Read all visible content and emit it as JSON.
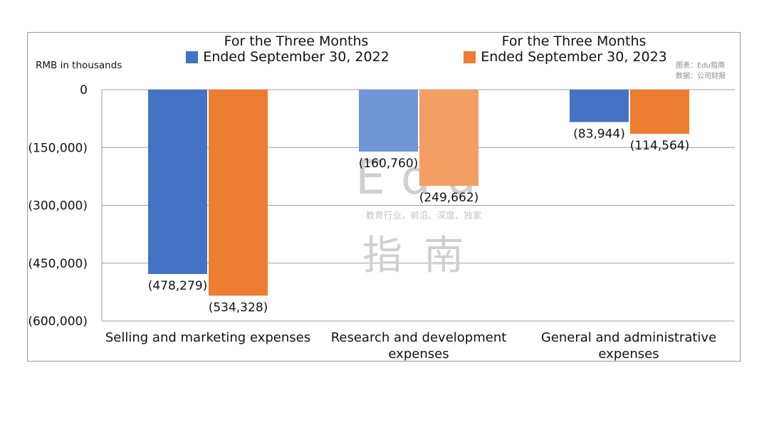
{
  "chart_data": {
    "type": "bar",
    "unit_label": "RMB in thousands",
    "categories": [
      "Selling and marketing expenses",
      "Research and development expenses",
      "General and administrative expenses"
    ],
    "series": [
      {
        "name": "For the Three Months Ended September 30, 2022",
        "color": "#4472c4",
        "values": [
          -478279,
          -160760,
          -83944
        ],
        "labels": [
          "(478,279)",
          "(160,760)",
          "(83,944)"
        ]
      },
      {
        "name": "For the Three Months Ended September 30, 2023",
        "color": "#ed7d31",
        "values": [
          -534328,
          -249662,
          -114564
        ],
        "labels": [
          "(534,328)",
          "(249,662)",
          "(114,564)"
        ]
      }
    ],
    "ylim": [
      -600000,
      0
    ],
    "yticks": [
      0,
      -150000,
      -300000,
      -450000,
      -600000
    ],
    "ytick_labels": [
      "0",
      "(150,000)",
      "(300,000)",
      "(450,000)",
      "(600,000)"
    ],
    "grid": true,
    "legend": "top"
  },
  "source_note": {
    "line1": "图表：Edu指南",
    "line2": "数据：公司财报"
  },
  "watermark": {
    "big_top": "Edu",
    "tagline": "教育行业，前沿、深度、独家",
    "big_bottom": "指南"
  }
}
